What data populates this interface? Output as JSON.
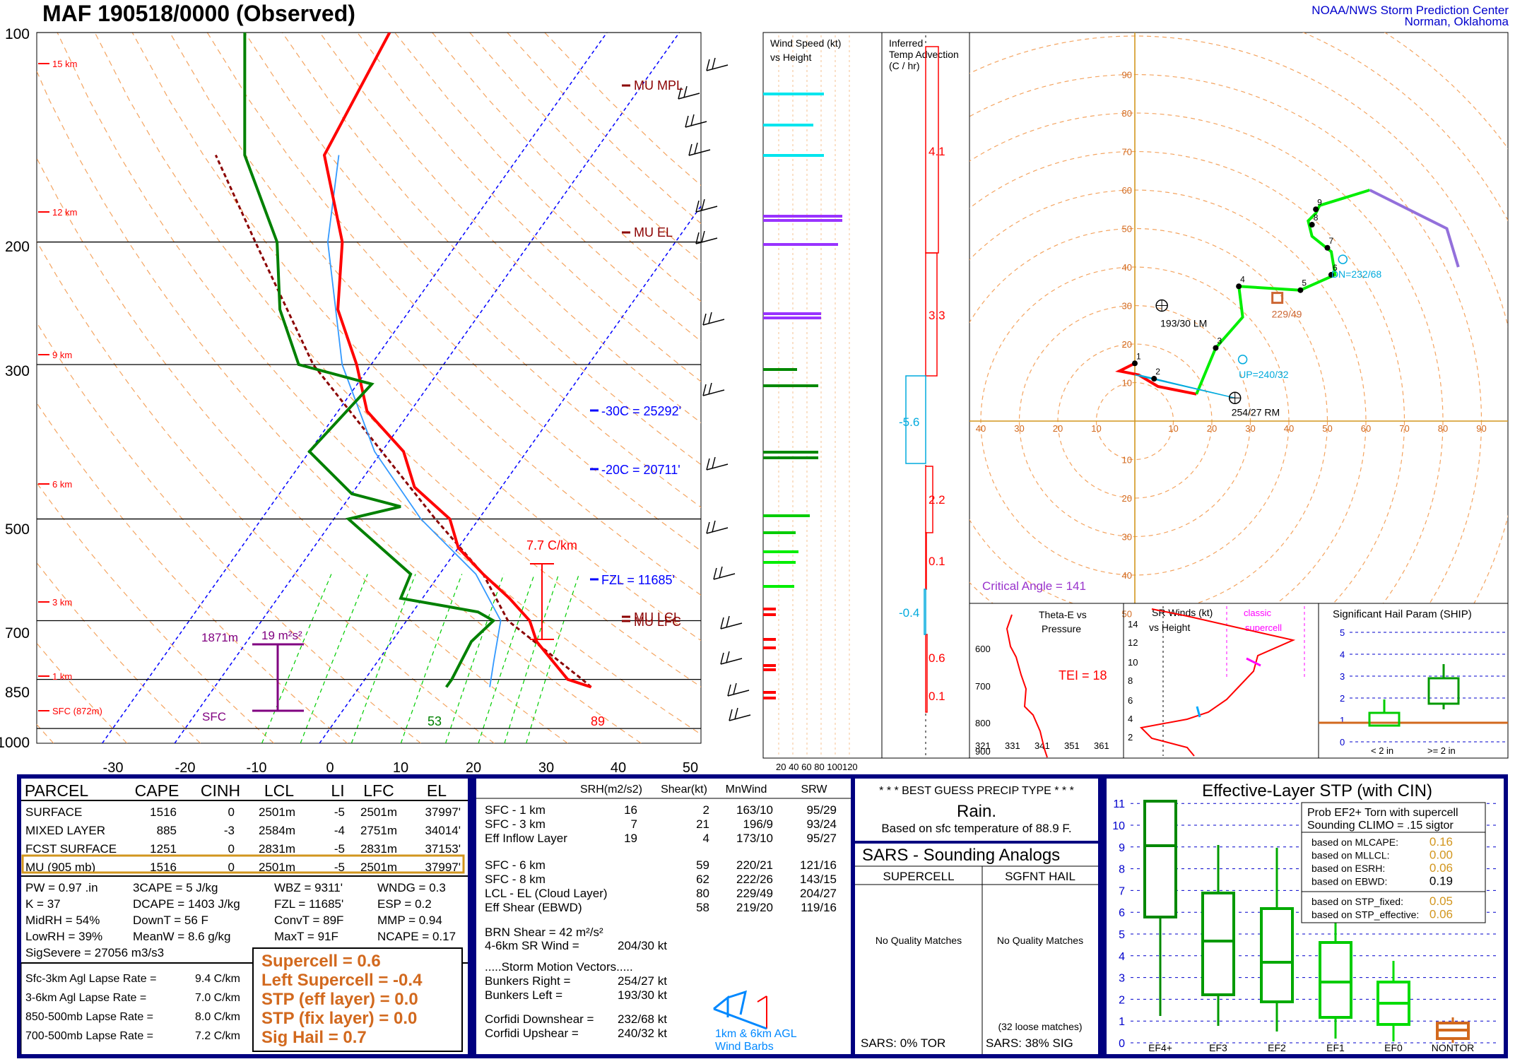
{
  "header": {
    "title": "MAF   190518/0000  (Observed)",
    "org_line1": "NOAA/NWS Storm Prediction Center",
    "org_line2": "Norman, Oklahoma"
  },
  "colors": {
    "temperature": "#ff0000",
    "dewpoint": "#008000",
    "virtual_temp": "#ff0000",
    "parcel": "#8b0000",
    "isotherm": "#0000ff",
    "dry_adiabat": "#f4a460",
    "mixing_ratio": "#00cc00",
    "hodo_0_3": "#ff0000",
    "hodo_3_6": "#00ff00",
    "hodo_6_9": "#00ff00",
    "hodo_9_12": "#9370db",
    "frame_blue": "#000080",
    "accent_orange": "#d2691e"
  },
  "skewt": {
    "pressure_labels": [
      "100",
      "200",
      "300",
      "500",
      "700",
      "850",
      "1000"
    ],
    "temp_labels": [
      "-30",
      "-20",
      "-10",
      "0",
      "10",
      "20",
      "30",
      "40",
      "50"
    ],
    "height_labels": [
      "15 km",
      "12 km",
      "9 km",
      "6 km",
      "3 km",
      "1 km",
      "SFC (872m)"
    ],
    "annotations": {
      "mu_mpl": "MU MPL",
      "mu_el": "MU EL",
      "minus30": "-30C = 25292'",
      "minus20": "-20C = 20711'",
      "fzl": "FZL = 11685'",
      "mu_lcl": "MU LCL",
      "mu_lfc": "MU LFC",
      "lapse": "7.7 C/km",
      "inflow_bottom": "1871m",
      "inflow_srh": "19 m²s²",
      "sfc_label": "SFC",
      "sfc_temp": "89",
      "sfc_dew": "53"
    }
  },
  "windspeed_panel": {
    "title1": "Wind Speed (kt)",
    "title2": "vs Height",
    "xlabels": "20 40 60 80 100120"
  },
  "tadv_panel": {
    "title1": "Inferred",
    "title2": "Temp Advection",
    "title3": "(C / hr)",
    "values": [
      "4.1",
      "3.3",
      "-5.6",
      "2.2",
      "0.1",
      "-0.4",
      "0.6",
      "0.1"
    ]
  },
  "hodograph": {
    "ring_labels_pos": [
      "10",
      "20",
      "30",
      "40",
      "50",
      "60",
      "70",
      "80",
      "90"
    ],
    "x_labels": [
      "40",
      "30",
      "20",
      "10",
      "",
      "10",
      "20",
      "30",
      "40",
      "50",
      "60",
      "70",
      "80",
      "90"
    ],
    "y_neg_labels": [
      "10",
      "20",
      "30",
      "40",
      "50"
    ],
    "lm": "193/30 LM",
    "rm": "254/27 RM",
    "mean": "229/49",
    "dn": "DN=232/68",
    "up": "UP=240/32",
    "critical_angle": "Critical Angle = 141",
    "height_marks": [
      "1",
      "2",
      "3",
      "4",
      "5",
      "6",
      "7",
      "8",
      "9"
    ]
  },
  "theta_panel": {
    "title1": "Theta-E vs",
    "title2": "Pressure",
    "tei": "TEI = 18",
    "ylabels": [
      "600",
      "700",
      "800",
      "900"
    ],
    "xlabels": [
      "321",
      "331",
      "341",
      "351",
      "361"
    ]
  },
  "sr_panel": {
    "title1": "SR Winds (kt)",
    "title2": "vs Height",
    "classic1": "classic",
    "classic2": "supercell",
    "ylabels": [
      "14",
      "12",
      "10",
      "8",
      "6",
      "4",
      "2"
    ]
  },
  "ship_panel": {
    "title": "Significant Hail Param (SHIP)",
    "ylabels": [
      "5",
      "4",
      "3",
      "2",
      "1",
      "0"
    ],
    "x1": "< 2 in",
    "x2": ">= 2 in"
  },
  "parcel_table": {
    "headers": [
      "PARCEL",
      "CAPE",
      "CINH",
      "LCL",
      "LI",
      "LFC",
      "EL"
    ],
    "rows": [
      [
        "SURFACE",
        "1516",
        "0",
        "2501m",
        "-5",
        "2501m",
        "37997'"
      ],
      [
        "MIXED LAYER",
        "885",
        "-3",
        "2584m",
        "-4",
        "2751m",
        "34014'"
      ],
      [
        "FCST SURFACE",
        "1251",
        "0",
        "2831m",
        "-5",
        "2831m",
        "37153'"
      ],
      [
        "MU   (905 mb)",
        "1516",
        "0",
        "2501m",
        "-5",
        "2501m",
        "37997'"
      ]
    ]
  },
  "indices": {
    "col1": [
      "PW = 0.97 .in",
      "K = 37",
      "MidRH = 54%",
      "LowRH = 39%",
      "SigSevere = 27056 m3/s3"
    ],
    "col2": [
      "3CAPE = 5 J/kg",
      "DCAPE = 1403 J/kg",
      "DownT = 56 F",
      "MeanW = 8.6 g/kg"
    ],
    "col3": [
      "WBZ = 9311'",
      "FZL = 11685'",
      "ConvT = 89F",
      "MaxT = 91F"
    ],
    "col4": [
      "WNDG = 0.3",
      "ESP = 0.2",
      "MMP = 0.94",
      "NCAPE = 0.17"
    ],
    "lapse": [
      [
        "Sfc-3km Agl Lapse Rate =",
        "9.4 C/km"
      ],
      [
        "3-6km Agl Lapse Rate =",
        "7.0 C/km"
      ],
      [
        "850-500mb Lapse Rate =",
        "8.0 C/km"
      ],
      [
        "700-500mb Lapse Rate =",
        "7.2 C/km"
      ]
    ],
    "composite": [
      "Supercell = 0.6",
      "Left Supercell = -0.4",
      "STP (eff layer) = 0.0",
      "STP (fix layer) = 0.0",
      "Sig Hail = 0.7"
    ]
  },
  "kinematics": {
    "headers": [
      "SRH(m2/s2)",
      "Shear(kt)",
      "MnWind",
      "SRW"
    ],
    "rows1": [
      [
        "SFC - 1 km",
        "16",
        "2",
        "163/10",
        "95/29"
      ],
      [
        "SFC - 3 km",
        "7",
        "21",
        "196/9",
        "93/24"
      ],
      [
        "Eff Inflow Layer",
        "19",
        "4",
        "173/10",
        "95/27"
      ]
    ],
    "rows2": [
      [
        "SFC - 6 km",
        "59",
        "220/21",
        "121/16"
      ],
      [
        "SFC - 8 km",
        "62",
        "222/26",
        "143/15"
      ],
      [
        "LCL - EL (Cloud Layer)",
        "80",
        "229/49",
        "204/27"
      ],
      [
        "Eff Shear (EBWD)",
        "58",
        "219/20",
        "119/16"
      ]
    ],
    "brn": "BRN Shear =  42 m²/s²",
    "sr46": "4-6km SR Wind =",
    "sr46v": "204/30 kt",
    "smv_title": ".....Storm Motion Vectors.....",
    "smv": [
      [
        "Bunkers Right =",
        "254/27 kt"
      ],
      [
        "Bunkers Left =",
        "193/30 kt"
      ]
    ],
    "corfidi": [
      [
        "Corfidi Downshear =",
        "232/68 kt"
      ],
      [
        "Corfidi Upshear =",
        "240/32 kt"
      ]
    ],
    "barb_label1": "1km & 6km AGL",
    "barb_label2": "Wind Barbs"
  },
  "precip": {
    "title": "* * * BEST GUESS PRECIP TYPE * * *",
    "type": "Rain.",
    "basis": "Based on sfc temperature of 88.9 F."
  },
  "sars": {
    "title": "SARS - Sounding Analogs",
    "col1": "SUPERCELL",
    "col2": "SGFNT HAIL",
    "nq1": "No Quality Matches",
    "nq2": "No Quality Matches",
    "loose": "(32 loose matches)",
    "foot1": "SARS:  0% TOR",
    "foot2": "SARS:  38% SIG"
  },
  "stp": {
    "title": "Effective-Layer STP (with CIN)",
    "prob1": "Prob EF2+ Torn with supercell",
    "prob2": "Sounding CLIMO = .15 sigtor",
    "rows": [
      [
        "based on MLCAPE:",
        "0.16"
      ],
      [
        "based on MLLCL:",
        "0.00"
      ],
      [
        "based on ESRH:",
        "0.06"
      ],
      [
        "based on EBWD:",
        "0.19"
      ],
      [
        "based on STP_fixed:",
        "0.05"
      ],
      [
        "based on STP_effective:",
        "0.06"
      ]
    ],
    "ylabels": [
      "11",
      "10",
      "9",
      "8",
      "7",
      "6",
      "5",
      "4",
      "3",
      "2",
      "1",
      "0"
    ],
    "xlabels": [
      "EF4+",
      "EF3",
      "EF2",
      "EF1",
      "EF0",
      "NONTOR"
    ]
  },
  "chart_data": [
    {
      "type": "line",
      "title": "MAF   190518/0000  (Observed)",
      "xlabel": "",
      "ylabel": "",
      "xlim": [
        -30,
        50
      ],
      "ylim": [
        1000,
        100
      ],
      "series": [
        {
          "name": "",
          "points": [
            [
              32,
              872
            ],
            [
              28,
              850
            ],
            [
              20,
              750
            ],
            [
              17,
              700
            ],
            [
              12,
              650
            ],
            [
              6,
              600
            ],
            [
              0,
              550
            ],
            [
              -4,
              500
            ],
            [
              -12,
              450
            ],
            [
              -17,
              400
            ],
            [
              -26,
              350
            ],
            [
              -32,
              300
            ],
            [
              -40,
              250
            ],
            [
              -46,
              200
            ],
            [
              -57,
              150
            ],
            [
              -60,
              100
            ]
          ]
        },
        {
          "name": "",
          "points": [
            [
              12,
              872
            ],
            [
              12,
              850
            ],
            [
              11,
              750
            ],
            [
              12,
              700
            ],
            [
              9,
              680
            ],
            [
              -3,
              650
            ],
            [
              -4,
              600
            ],
            [
              -18,
              500
            ],
            [
              -12,
              480
            ],
            [
              -20,
              460
            ],
            [
              -30,
              400
            ],
            [
              -28,
              320
            ],
            [
              -40,
              300
            ],
            [
              -48,
              250
            ],
            [
              -55,
              200
            ],
            [
              -68,
              150
            ],
            [
              -80,
              100
            ]
          ]
        }
      ]
    },
    {
      "type": "scatter",
      "title": "",
      "xlabel": "",
      "ylabel": "",
      "xlim": [
        -40,
        90
      ],
      "ylim": [
        -50,
        90
      ],
      "series": [
        {
          "name": "",
          "points": [
            [
              0,
              15
            ],
            [
              1,
              12
            ],
            [
              5,
              11
            ],
            [
              16,
              7
            ],
            [
              21,
              19
            ],
            [
              28,
              27
            ],
            [
              27,
              35
            ],
            [
              43,
              34
            ],
            [
              52,
              38
            ],
            [
              51,
              44
            ],
            [
              46,
              48
            ],
            [
              45,
              52
            ],
            [
              47,
              54
            ],
            [
              48,
              56
            ],
            [
              61,
              60
            ],
            [
              81,
              50
            ],
            [
              84,
              40
            ]
          ]
        }
      ]
    }
  ]
}
